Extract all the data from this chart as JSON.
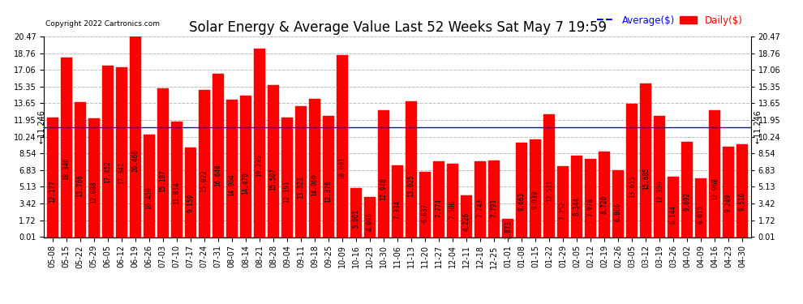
{
  "title": "Solar Energy & Average Value Last 52 Weeks Sat May 7 19:59",
  "copyright": "Copyright 2022 Cartronics.com",
  "avg_label": "Average($)",
  "daily_label": "Daily($)",
  "avg_value": 11.246,
  "categories": [
    "05-08",
    "05-15",
    "05-22",
    "05-29",
    "06-05",
    "06-12",
    "06-19",
    "06-26",
    "07-03",
    "07-10",
    "07-17",
    "07-24",
    "07-31",
    "08-07",
    "08-14",
    "08-21",
    "08-28",
    "09-04",
    "09-11",
    "09-18",
    "09-25",
    "10-09",
    "10-16",
    "10-23",
    "10-30",
    "11-06",
    "11-13",
    "11-20",
    "11-27",
    "12-04",
    "12-11",
    "12-18",
    "12-25",
    "01-01",
    "01-08",
    "01-15",
    "01-22",
    "01-29",
    "02-05",
    "02-12",
    "02-19",
    "02-26",
    "03-05",
    "03-12",
    "03-19",
    "03-26",
    "04-02",
    "04-09",
    "04-16",
    "04-23",
    "04-30"
  ],
  "values": [
    12.177,
    18.346,
    13.766,
    12.088,
    17.452,
    17.341,
    20.468,
    10.459,
    15.187,
    11.814,
    9.159,
    15.022,
    16.646,
    14.004,
    14.47,
    19.235,
    15.507,
    12.191,
    13.323,
    14.069,
    12.376,
    18.601,
    5.001,
    4.096,
    12.94,
    7.334,
    13.825,
    6.637,
    7.774,
    7.506,
    4.226,
    7.743,
    7.791,
    1.873,
    9.663,
    9.939,
    12.511,
    7.252,
    8.344,
    7.978,
    8.72,
    6.806,
    13.615,
    15.685,
    12.359,
    6.144,
    9.692,
    6.015,
    12.968,
    9.249,
    9.51
  ],
  "bar_color": "#ff0000",
  "avg_line_color": "#0000ff",
  "grid_color": "#bbbbbb",
  "background_color": "#ffffff",
  "yticks": [
    0.01,
    1.72,
    3.42,
    5.13,
    6.83,
    8.54,
    10.24,
    11.95,
    13.65,
    15.35,
    17.06,
    18.76,
    20.47
  ],
  "ymin": 0.0,
  "ymax": 20.47,
  "title_fontsize": 12,
  "tick_fontsize": 7,
  "value_fontsize": 5.5
}
